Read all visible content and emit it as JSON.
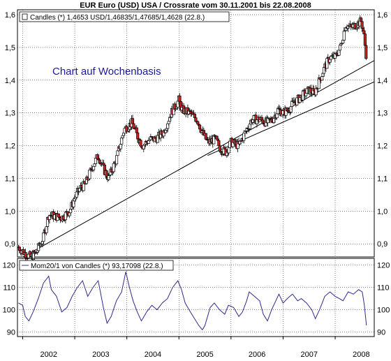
{
  "title": "EUR Euro (USD) USA / Crossrate vom 30.11.2001 bis 22.08.2008",
  "colors": {
    "background": "#ffffff",
    "up_candle_fill": "#ffffff",
    "down_candle_fill": "#cc1f1f",
    "candle_outline": "#000000",
    "grid": "#000000",
    "momentum_line": "#2b2b8f",
    "annotation_text": "#1a1a9a",
    "trend_line": "#000000"
  },
  "chart_data": [
    {
      "type": "candlestick",
      "legend": "Candles (*) 1,4653 USD/1,46835/1,47685/1,4628 (22.8.)",
      "annotation": "Chart auf Wochenbasis",
      "y_ticks": [
        "0,9",
        "1,0",
        "1,1",
        "1,2",
        "1,3",
        "1,4",
        "1,5",
        "1,6"
      ],
      "ylim": [
        0.86,
        1.615
      ],
      "x_ticks": [
        "2002",
        "2003",
        "2004",
        "2005",
        "2006",
        "2007",
        "2008"
      ],
      "xlim": [
        2001.9,
        2008.75
      ],
      "grid": true,
      "legend_position": "top-left",
      "close_path": [
        [
          2001.92,
          0.89
        ],
        [
          2002.05,
          0.87
        ],
        [
          2002.15,
          0.86
        ],
        [
          2002.25,
          0.87
        ],
        [
          2002.4,
          0.92
        ],
        [
          2002.5,
          0.99
        ],
        [
          2002.6,
          0.985
        ],
        [
          2002.75,
          0.98
        ],
        [
          2002.9,
          1.0
        ],
        [
          2003.0,
          1.04
        ],
        [
          2003.1,
          1.07
        ],
        [
          2003.2,
          1.08
        ],
        [
          2003.35,
          1.14
        ],
        [
          2003.45,
          1.17
        ],
        [
          2003.55,
          1.13
        ],
        [
          2003.65,
          1.1
        ],
        [
          2003.8,
          1.16
        ],
        [
          2003.95,
          1.25
        ],
        [
          2004.1,
          1.27
        ],
        [
          2004.2,
          1.23
        ],
        [
          2004.3,
          1.2
        ],
        [
          2004.45,
          1.22
        ],
        [
          2004.55,
          1.22
        ],
        [
          2004.7,
          1.24
        ],
        [
          2004.85,
          1.3
        ],
        [
          2005.0,
          1.34
        ],
        [
          2005.05,
          1.31
        ],
        [
          2005.2,
          1.3
        ],
        [
          2005.35,
          1.28
        ],
        [
          2005.45,
          1.24
        ],
        [
          2005.55,
          1.21
        ],
        [
          2005.7,
          1.22
        ],
        [
          2005.8,
          1.19
        ],
        [
          2005.9,
          1.18
        ],
        [
          2006.0,
          1.21
        ],
        [
          2006.15,
          1.2
        ],
        [
          2006.3,
          1.25
        ],
        [
          2006.4,
          1.28
        ],
        [
          2006.55,
          1.28
        ],
        [
          2006.7,
          1.27
        ],
        [
          2006.8,
          1.28
        ],
        [
          2006.9,
          1.31
        ],
        [
          2007.0,
          1.3
        ],
        [
          2007.1,
          1.31
        ],
        [
          2007.2,
          1.33
        ],
        [
          2007.35,
          1.35
        ],
        [
          2007.5,
          1.37
        ],
        [
          2007.6,
          1.36
        ],
        [
          2007.7,
          1.4
        ],
        [
          2007.8,
          1.44
        ],
        [
          2007.9,
          1.47
        ],
        [
          2008.0,
          1.47
        ],
        [
          2008.1,
          1.5
        ],
        [
          2008.2,
          1.57
        ],
        [
          2008.3,
          1.56
        ],
        [
          2008.4,
          1.57
        ],
        [
          2008.5,
          1.58
        ],
        [
          2008.55,
          1.54
        ],
        [
          2008.6,
          1.47
        ]
      ],
      "trend_lines": [
        {
          "from": [
            2001.95,
            0.855
          ],
          "to": [
            2008.75,
            1.46
          ]
        },
        {
          "from": [
            2005.55,
            1.17
          ],
          "to": [
            2008.75,
            1.395
          ]
        }
      ]
    },
    {
      "type": "line",
      "legend": "Mom20/1 von Candles (*) 93,17098 (22.8.)",
      "y_ticks": [
        "90",
        "100",
        "110",
        "120"
      ],
      "ylim": [
        88,
        123
      ],
      "x_ticks": [
        "2002",
        "2003",
        "2004",
        "2005",
        "2006",
        "2007",
        "2008"
      ],
      "xlim": [
        2001.9,
        2008.75
      ],
      "grid": true,
      "legend_position": "top-left",
      "points": [
        [
          2001.92,
          103
        ],
        [
          2002.0,
          102
        ],
        [
          2002.05,
          97
        ],
        [
          2002.12,
          95
        ],
        [
          2002.2,
          99
        ],
        [
          2002.3,
          105
        ],
        [
          2002.4,
          112
        ],
        [
          2002.5,
          115
        ],
        [
          2002.55,
          109
        ],
        [
          2002.65,
          106
        ],
        [
          2002.75,
          99
        ],
        [
          2002.85,
          101
        ],
        [
          2002.95,
          106
        ],
        [
          2003.05,
          110
        ],
        [
          2003.15,
          113
        ],
        [
          2003.25,
          106
        ],
        [
          2003.35,
          110
        ],
        [
          2003.45,
          113
        ],
        [
          2003.55,
          101
        ],
        [
          2003.62,
          94
        ],
        [
          2003.7,
          97
        ],
        [
          2003.8,
          104
        ],
        [
          2003.9,
          108
        ],
        [
          2003.98,
          117
        ],
        [
          2004.05,
          110
        ],
        [
          2004.12,
          104
        ],
        [
          2004.2,
          99
        ],
        [
          2004.28,
          95
        ],
        [
          2004.38,
          99
        ],
        [
          2004.48,
          102
        ],
        [
          2004.58,
          100
        ],
        [
          2004.68,
          103
        ],
        [
          2004.78,
          105
        ],
        [
          2004.88,
          110
        ],
        [
          2004.98,
          113
        ],
        [
          2005.05,
          109
        ],
        [
          2005.12,
          103
        ],
        [
          2005.22,
          99
        ],
        [
          2005.3,
          96
        ],
        [
          2005.38,
          93
        ],
        [
          2005.45,
          91
        ],
        [
          2005.5,
          93
        ],
        [
          2005.6,
          101
        ],
        [
          2005.68,
          103
        ],
        [
          2005.78,
          100
        ],
        [
          2005.88,
          98
        ],
        [
          2005.95,
          102
        ],
        [
          2006.05,
          101
        ],
        [
          2006.15,
          97
        ],
        [
          2006.22,
          99
        ],
        [
          2006.3,
          104
        ],
        [
          2006.35,
          108
        ],
        [
          2006.45,
          106
        ],
        [
          2006.55,
          104
        ],
        [
          2006.62,
          98
        ],
        [
          2006.7,
          95
        ],
        [
          2006.78,
          100
        ],
        [
          2006.86,
          104
        ],
        [
          2006.92,
          107
        ],
        [
          2007.0,
          103
        ],
        [
          2007.08,
          105
        ],
        [
          2007.18,
          107
        ],
        [
          2007.28,
          104
        ],
        [
          2007.35,
          105
        ],
        [
          2007.45,
          103
        ],
        [
          2007.55,
          100
        ],
        [
          2007.62,
          96
        ],
        [
          2007.7,
          100
        ],
        [
          2007.8,
          106
        ],
        [
          2007.9,
          108
        ],
        [
          2008.0,
          106
        ],
        [
          2008.08,
          105
        ],
        [
          2008.15,
          104
        ],
        [
          2008.25,
          108
        ],
        [
          2008.35,
          107
        ],
        [
          2008.45,
          109
        ],
        [
          2008.52,
          108
        ],
        [
          2008.56,
          102
        ],
        [
          2008.6,
          93
        ]
      ]
    }
  ]
}
